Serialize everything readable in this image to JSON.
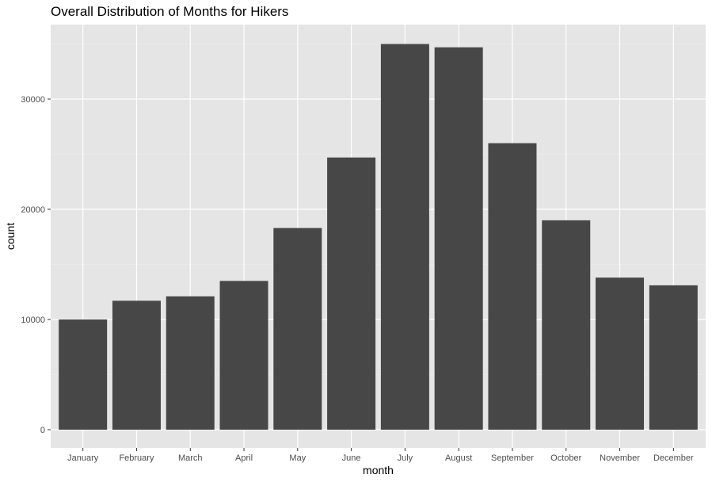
{
  "chart_data": {
    "type": "bar",
    "title": "Overall Distribution of Months for Hikers",
    "xlabel": "month",
    "ylabel": "count",
    "categories": [
      "January",
      "February",
      "March",
      "April",
      "May",
      "June",
      "July",
      "August",
      "September",
      "October",
      "November",
      "December"
    ],
    "values": [
      10000,
      11700,
      12100,
      13500,
      18300,
      24700,
      35000,
      34700,
      26000,
      19000,
      13800,
      13100
    ],
    "ylim": [
      0,
      36500
    ],
    "yticks": [
      0,
      10000,
      20000,
      30000
    ],
    "ytick_labels": [
      "0",
      "10000",
      "20000",
      "30000"
    ],
    "grid": true,
    "legend": "none",
    "colors": {
      "bar": "#474747",
      "panel_background": "#e5e5e5",
      "grid_major": "#ffffff",
      "grid_minor": "#f0f0f0",
      "tick_text": "#4d4d4d"
    }
  }
}
